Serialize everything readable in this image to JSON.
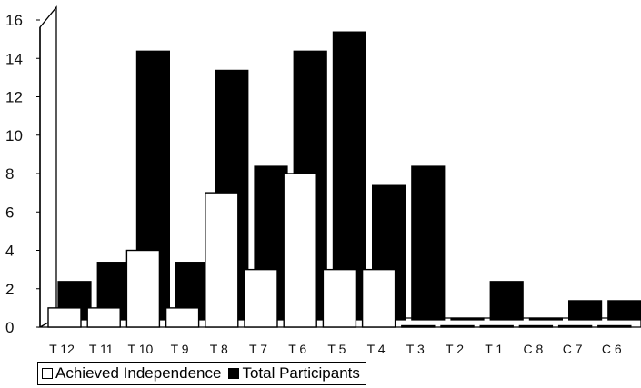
{
  "chart_data": {
    "type": "bar",
    "categories": [
      "T 12",
      "T 11",
      "T 10",
      "T 9",
      "T 8",
      "T 7",
      "T 6",
      "T 5",
      "T 4",
      "T 3",
      "T 2",
      "T 1",
      "C 8",
      "C 7",
      "C 6"
    ],
    "series": [
      {
        "name": "Achieved Independence",
        "color": "#ffffff",
        "values": [
          1,
          1,
          4,
          1,
          7,
          3,
          8,
          3,
          3,
          0,
          0,
          0,
          0,
          0,
          0
        ]
      },
      {
        "name": "Total Participants",
        "color": "#000000",
        "values": [
          2,
          3,
          14,
          3,
          13,
          8,
          14,
          15,
          7,
          8,
          0,
          2,
          0,
          1,
          1
        ]
      }
    ],
    "yticks": [
      0,
      2,
      4,
      6,
      8,
      10,
      12,
      14,
      16
    ],
    "ylim": [
      0,
      16
    ],
    "grid": false,
    "legend_position": "bottom-left"
  }
}
